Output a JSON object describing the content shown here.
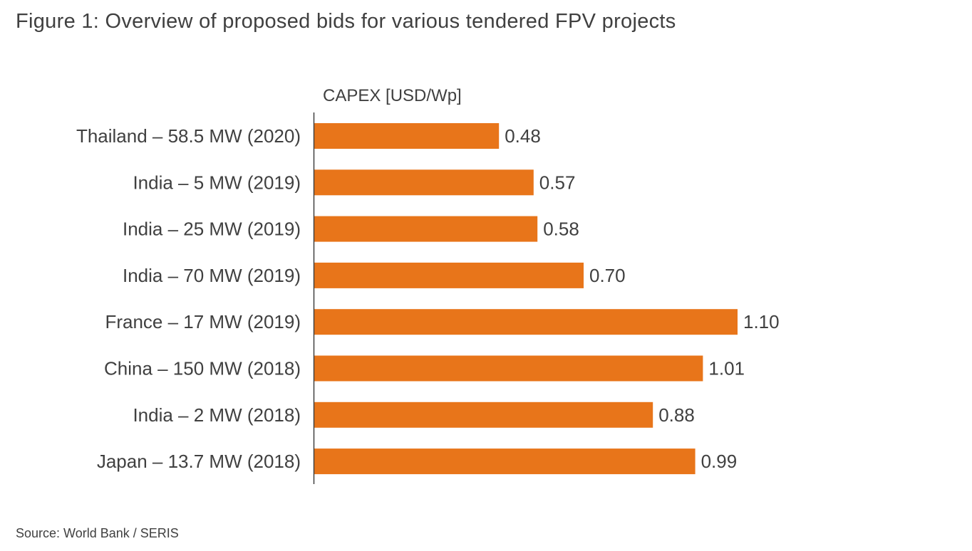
{
  "title": "Figure 1: Overview of proposed bids for various tendered FPV projects",
  "source": "Source: World Bank / SERIS",
  "chart_data": {
    "type": "bar",
    "orientation": "horizontal",
    "title": "Figure 1: Overview of proposed bids for various tendered FPV projects",
    "xlabel": "CAPEX [USD/Wp]",
    "ylabel": "",
    "categories": [
      "Thailand – 58.5 MW (2020)",
      "India – 5 MW (2019)",
      "India – 25 MW (2019)",
      "India – 70 MW (2019)",
      "France – 17 MW (2019)",
      "China – 150 MW (2018)",
      "India – 2 MW (2018)",
      "Japan – 13.7 MW (2018)"
    ],
    "values": [
      0.48,
      0.57,
      0.58,
      0.7,
      1.1,
      1.01,
      0.88,
      0.99
    ],
    "value_labels": [
      "0.48",
      "0.57",
      "0.58",
      "0.70",
      "1.10",
      "1.01",
      "0.88",
      "0.99"
    ],
    "xlim": [
      0,
      1.2
    ],
    "grid": false,
    "bar_color": "#E8751A"
  }
}
